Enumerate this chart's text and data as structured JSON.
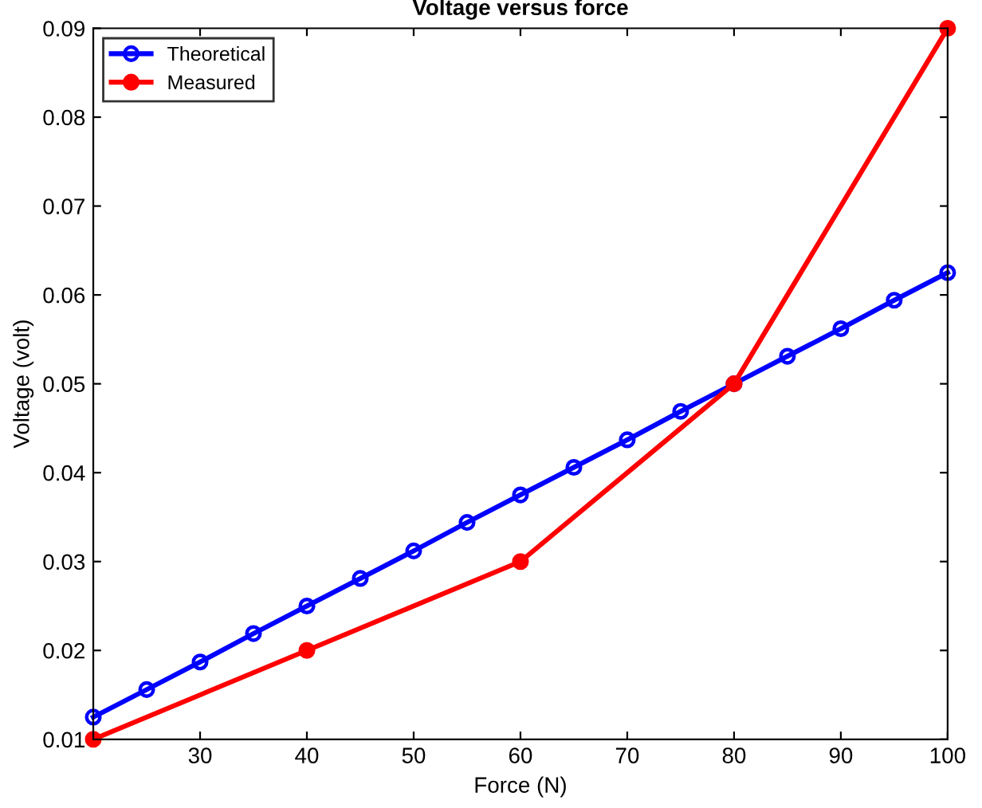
{
  "chart_data": {
    "type": "line",
    "title": "Voltage versus force",
    "xlabel": "Force (N)",
    "ylabel": "Voltage (volt)",
    "xlim": [
      20,
      100
    ],
    "xticks": [
      30,
      40,
      50,
      60,
      70,
      80,
      90,
      100
    ],
    "ylim": [
      0.01,
      0.09
    ],
    "yticks": [
      0.01,
      0.02,
      0.03,
      0.04,
      0.05,
      0.06,
      0.07,
      0.08,
      0.09
    ],
    "legend": "top left",
    "grid": false,
    "series": [
      {
        "name": "Theoretical",
        "color": "#0000ff",
        "marker": "circle",
        "x": [
          20,
          25,
          30,
          35,
          40,
          45,
          50,
          55,
          60,
          65,
          70,
          75,
          80,
          85,
          90,
          95,
          100
        ],
        "values": [
          0.0125,
          0.0156,
          0.0187,
          0.0219,
          0.025,
          0.0281,
          0.0312,
          0.0344,
          0.0375,
          0.0406,
          0.0437,
          0.0469,
          0.05,
          0.0531,
          0.0562,
          0.0594,
          0.0625
        ]
      },
      {
        "name": "Measured",
        "color": "#ff0000",
        "marker": "circle",
        "x": [
          20,
          40,
          60,
          80,
          100
        ],
        "values": [
          0.01,
          0.02,
          0.03,
          0.05,
          0.09
        ]
      }
    ]
  }
}
